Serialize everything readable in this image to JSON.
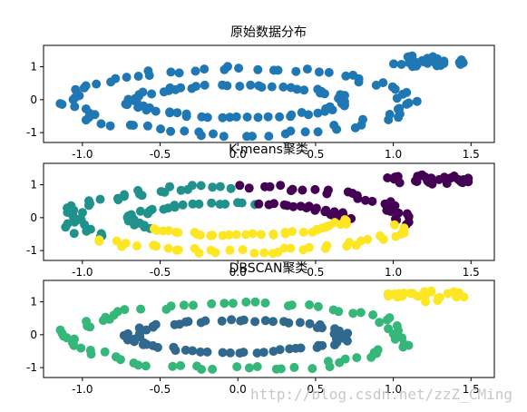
{
  "watermark": "http://blog.csdn.net/zzZ_CMing",
  "chart_data": [
    {
      "type": "scatter",
      "title": "原始数据分布",
      "xlabel": "",
      "ylabel": "",
      "xlim": [
        -1.25,
        1.65
      ],
      "ylim": [
        -1.3,
        1.65
      ],
      "xticks": [
        "-1.0",
        "-0.5",
        "0.0",
        "0.5",
        "1.0",
        "1.5"
      ],
      "yticks": [
        "-1",
        "0",
        "1"
      ],
      "series": [
        {
          "color": "#1f77b4",
          "shape": "ring",
          "cx": 0.0,
          "cy": -0.05,
          "rx": 1.08,
          "ry": 1.0,
          "n": 80
        },
        {
          "color": "#1f77b4",
          "shape": "ring",
          "cx": 0.0,
          "cy": -0.05,
          "rx": 0.68,
          "ry": 0.48,
          "n": 70
        },
        {
          "color": "#1f77b4",
          "shape": "blob",
          "cx": 1.22,
          "cy": 1.17,
          "rx": 0.29,
          "ry": 0.18,
          "n": 30
        }
      ]
    },
    {
      "type": "scatter",
      "title": "K-means聚类",
      "xlabel": "",
      "ylabel": "",
      "xlim": [
        -1.25,
        1.65
      ],
      "ylim": [
        -1.3,
        1.65
      ],
      "xticks": [
        "-1.0",
        "-0.5",
        "0.0",
        "0.5",
        "1.0",
        "1.5"
      ],
      "yticks": [
        "-1",
        "0",
        "1"
      ],
      "series": [
        {
          "color": "#21918c",
          "shape": "arc",
          "cx": 0.0,
          "cy": -0.05,
          "rx": 1.08,
          "ry": 1.0,
          "from": 90,
          "to": 215,
          "n": 40
        },
        {
          "color": "#21918c",
          "shape": "arc",
          "cx": 0.0,
          "cy": -0.05,
          "rx": 0.68,
          "ry": 0.48,
          "from": 80,
          "to": 215,
          "n": 30
        },
        {
          "color": "#440154",
          "shape": "arc",
          "cx": 0.0,
          "cy": -0.05,
          "rx": 1.08,
          "ry": 1.0,
          "from": -10,
          "to": 90,
          "n": 30
        },
        {
          "color": "#440154",
          "shape": "arc",
          "cx": 0.0,
          "cy": -0.05,
          "rx": 0.68,
          "ry": 0.48,
          "from": 0,
          "to": 80,
          "n": 20
        },
        {
          "color": "#440154",
          "shape": "blob",
          "cx": 1.22,
          "cy": 1.17,
          "rx": 0.29,
          "ry": 0.18,
          "n": 30
        },
        {
          "color": "#fde725",
          "shape": "arc",
          "cx": 0.0,
          "cy": -0.05,
          "rx": 1.08,
          "ry": 1.0,
          "from": 215,
          "to": 350,
          "n": 40
        },
        {
          "color": "#fde725",
          "shape": "arc",
          "cx": 0.0,
          "cy": -0.05,
          "rx": 0.68,
          "ry": 0.48,
          "from": 215,
          "to": 360,
          "n": 35
        }
      ]
    },
    {
      "type": "scatter",
      "title": "DBSCAN聚类",
      "xlabel": "",
      "ylabel": "",
      "xlim": [
        -1.25,
        1.65
      ],
      "ylim": [
        -1.3,
        1.65
      ],
      "xticks": [
        "-1.0",
        "-0.5",
        "0.0",
        "0.5",
        "1.0",
        "1.5"
      ],
      "yticks": [
        "-1",
        "0",
        "1"
      ],
      "series": [
        {
          "color": "#35b779",
          "shape": "ring",
          "cx": 0.0,
          "cy": -0.05,
          "rx": 1.08,
          "ry": 1.0,
          "n": 80
        },
        {
          "color": "#31688e",
          "shape": "ring",
          "cx": 0.0,
          "cy": -0.05,
          "rx": 0.68,
          "ry": 0.48,
          "n": 70
        },
        {
          "color": "#fde725",
          "shape": "blob",
          "cx": 1.22,
          "cy": 1.17,
          "rx": 0.29,
          "ry": 0.18,
          "n": 30
        }
      ]
    }
  ]
}
